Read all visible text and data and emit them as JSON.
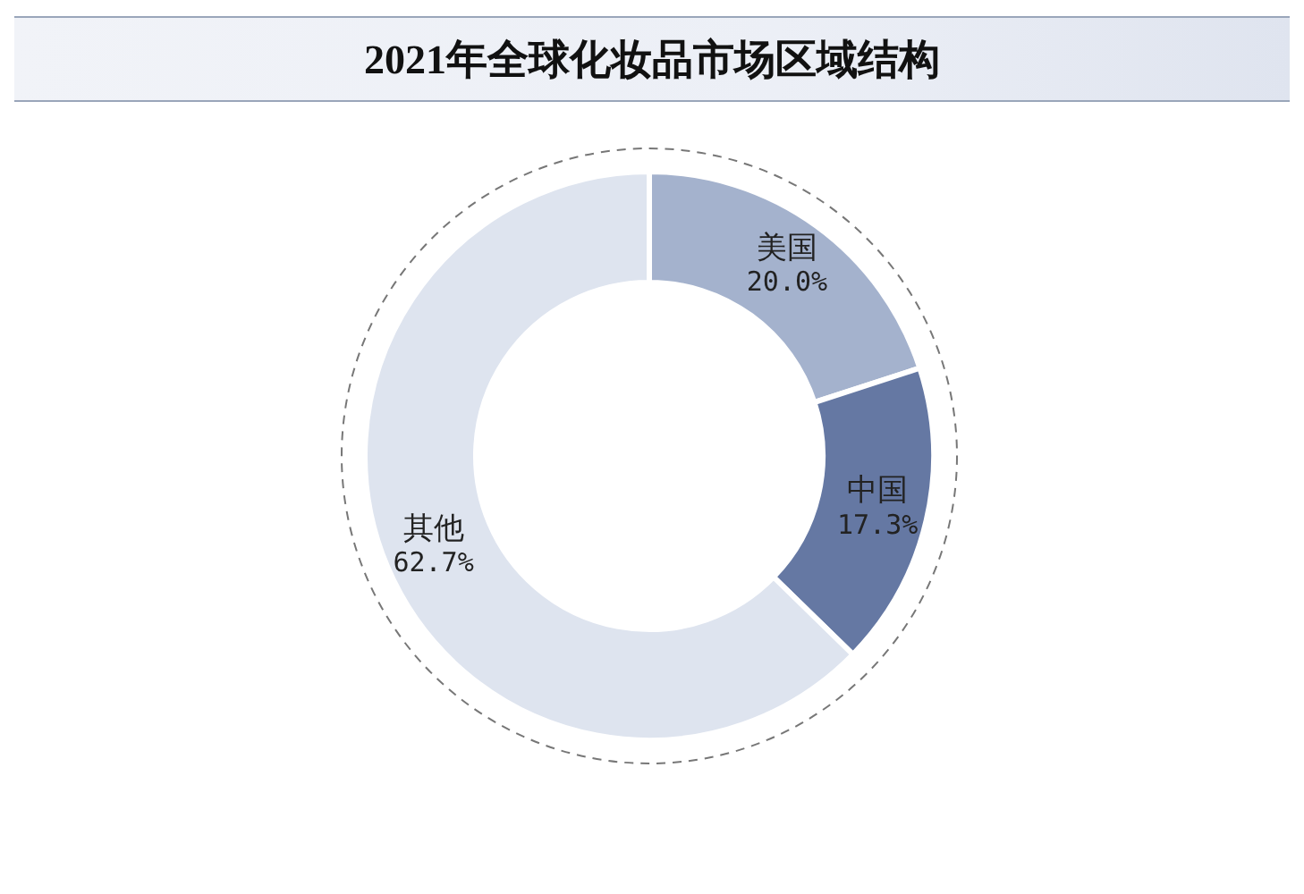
{
  "chart_data": {
    "type": "donut",
    "title": "2021年全球化妆品市场区域结构",
    "categories": [
      "美国",
      "中国",
      "其他"
    ],
    "values": [
      20.0,
      17.3,
      62.7
    ],
    "colors": [
      "#a4b2cd",
      "#6578a3",
      "#dee4ef"
    ],
    "value_labels": [
      "20.0%",
      "17.3%",
      "62.7%"
    ]
  }
}
